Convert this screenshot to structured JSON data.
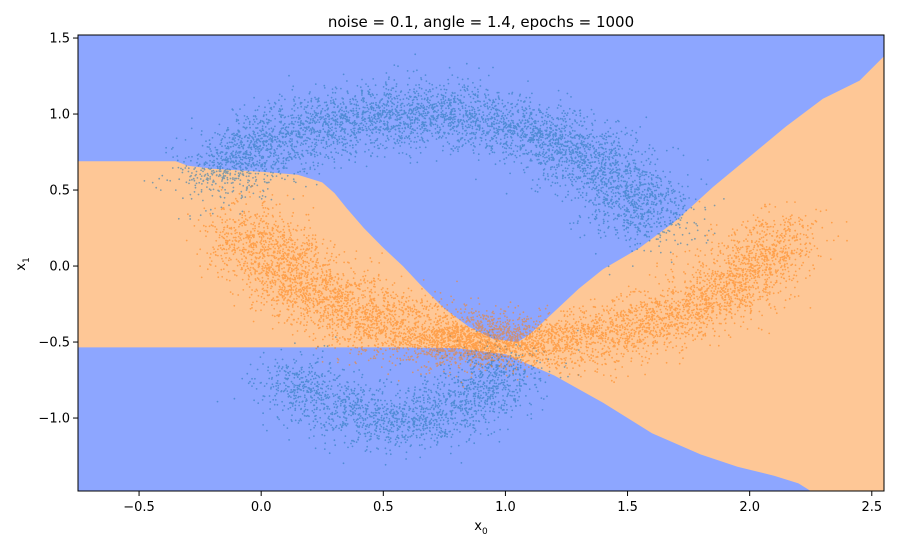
{
  "chart_data": {
    "type": "scatter",
    "title": "noise = 0.1, angle = 1.4, epochs = 1000",
    "xlabel": {
      "base": "x",
      "sub": "0"
    },
    "ylabel": {
      "base": "x",
      "sub": "1"
    },
    "xlim": [
      -0.75,
      2.55
    ],
    "ylim": [
      -1.48,
      1.52
    ],
    "x_ticks": [
      -0.5,
      0.0,
      0.5,
      1.0,
      1.5,
      2.0,
      2.5
    ],
    "x_tick_labels": [
      "−0.5",
      "0.0",
      "0.5",
      "1.0",
      "1.5",
      "2.0",
      "2.5"
    ],
    "y_ticks": [
      -1.0,
      -0.5,
      0.0,
      0.5,
      1.0,
      1.5
    ],
    "y_tick_labels": [
      "−1.0",
      "−0.5",
      "0.0",
      "0.5",
      "1.0",
      "1.5"
    ],
    "grid": false,
    "colors": {
      "background_region": "#8DA6FF",
      "orange_region": "#FEC796",
      "blue_points": "#1F77B4",
      "orange_points": "#FF7F0E"
    },
    "decision_regions": {
      "background_class": "blue",
      "orange_regions": [
        [
          [
            -0.75,
            0.69
          ],
          [
            -0.35,
            0.69
          ],
          [
            -0.3,
            0.66
          ],
          [
            -0.2,
            0.64
          ],
          [
            0.0,
            0.62
          ],
          [
            0.15,
            0.6
          ],
          [
            0.25,
            0.55
          ],
          [
            0.3,
            0.48
          ],
          [
            0.35,
            0.38
          ],
          [
            0.42,
            0.25
          ],
          [
            0.5,
            0.12
          ],
          [
            0.58,
            0.0
          ],
          [
            0.65,
            -0.12
          ],
          [
            0.75,
            -0.28
          ],
          [
            0.85,
            -0.4
          ],
          [
            0.95,
            -0.48
          ],
          [
            1.05,
            -0.5
          ],
          [
            1.1,
            -0.45
          ],
          [
            1.2,
            -0.3
          ],
          [
            1.3,
            -0.15
          ],
          [
            1.4,
            -0.02
          ],
          [
            1.55,
            0.12
          ],
          [
            1.7,
            0.3
          ],
          [
            1.85,
            0.52
          ],
          [
            2.0,
            0.72
          ],
          [
            2.15,
            0.92
          ],
          [
            2.3,
            1.1
          ],
          [
            2.45,
            1.22
          ],
          [
            2.55,
            1.38
          ],
          [
            2.55,
            -1.48
          ],
          [
            2.25,
            -1.48
          ],
          [
            2.2,
            -1.43
          ],
          [
            2.1,
            -1.38
          ],
          [
            1.95,
            -1.32
          ],
          [
            1.8,
            -1.24
          ],
          [
            1.6,
            -1.1
          ],
          [
            1.4,
            -0.9
          ],
          [
            1.2,
            -0.72
          ],
          [
            1.0,
            -0.58
          ],
          [
            0.8,
            -0.54
          ],
          [
            0.55,
            -0.535
          ],
          [
            0.2,
            -0.535
          ],
          [
            -0.75,
            -0.535
          ]
        ]
      ]
    },
    "series": [
      {
        "class": "blue",
        "clusters": [
          {
            "shape": "arc",
            "cx": 0.63,
            "cy": 0.0,
            "r": 1.0,
            "start_deg": 15,
            "end_deg": 145,
            "n": 4600,
            "spread": 0.11
          },
          {
            "shape": "arc",
            "cx": 0.55,
            "cy": -0.55,
            "r": 0.46,
            "start_deg": 198,
            "end_deg": 355,
            "n": 1800,
            "spread": 0.1
          }
        ]
      },
      {
        "class": "orange",
        "clusters": [
          {
            "shape": "arc",
            "cx": 1.0,
            "cy": 0.6,
            "r": 1.1,
            "start_deg": 196,
            "end_deg": 268,
            "n": 3000,
            "spread": 0.11
          },
          {
            "shape": "arc",
            "cx": 1.1,
            "cy": 0.6,
            "r": 1.1,
            "start_deg": 272,
            "end_deg": 340,
            "n": 2400,
            "spread": 0.1
          },
          {
            "shape": "blob",
            "cx": 0.95,
            "cy": -0.5,
            "sx": 0.15,
            "sy": 0.08,
            "n": 1000
          }
        ]
      }
    ]
  }
}
